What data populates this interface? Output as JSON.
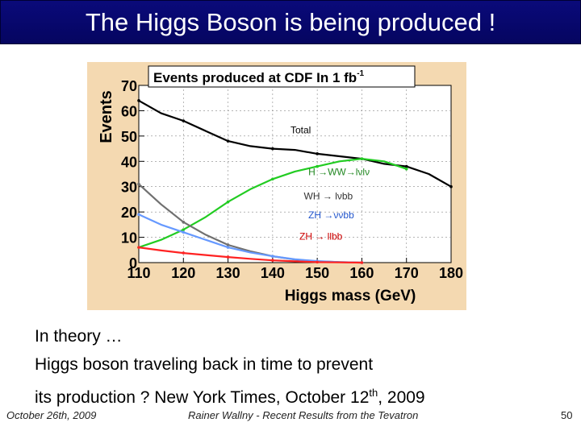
{
  "slide": {
    "title": "The Higgs Boson is being produced !",
    "body_lines": [
      "In theory …",
      "Higgs boson traveling back in time to prevent"
    ],
    "line3_pre": "its production ? New York Times, October 12",
    "line3_sup": "th",
    "line3_post": ", 2009",
    "footer": {
      "date": "October 26th, 2009",
      "author": "Rainer Wallny - Recent Results from the Tevatron",
      "page": "50"
    }
  },
  "chart_data": {
    "type": "line",
    "title": "Events produced at CDF In 1 fb",
    "title_sup": "-1",
    "xlabel": "Higgs mass (GeV)",
    "ylabel": "Events",
    "xlim": [
      110,
      180
    ],
    "ylim": [
      0,
      70
    ],
    "xticks": [
      110,
      120,
      130,
      140,
      150,
      160,
      170,
      180
    ],
    "yticks": [
      0,
      10,
      20,
      30,
      40,
      50,
      60,
      70
    ],
    "grid": true,
    "series": [
      {
        "name": "Total",
        "color": "#000000",
        "x": [
          110,
          115,
          120,
          125,
          130,
          135,
          140,
          145,
          150,
          155,
          160,
          165,
          170,
          175,
          180
        ],
        "y": [
          64,
          59,
          56,
          52,
          48,
          46,
          45,
          44.5,
          43,
          42,
          41,
          39,
          38,
          35,
          30
        ]
      },
      {
        "name": "H →WW→lνlν",
        "color": "#22cc22",
        "x": [
          110,
          115,
          120,
          125,
          130,
          135,
          140,
          145,
          150,
          155,
          160,
          165,
          170
        ],
        "y": [
          6,
          9,
          13,
          18,
          24,
          29,
          33,
          36,
          38,
          40,
          41,
          40,
          37
        ]
      },
      {
        "name": "WH → lνbb",
        "color": "#707070",
        "x": [
          110,
          115,
          120,
          125,
          130,
          135,
          140,
          145,
          150,
          155,
          160
        ],
        "y": [
          31,
          23,
          16,
          11,
          7,
          4.5,
          2.5,
          1.2,
          0.5,
          0.2,
          0
        ]
      },
      {
        "name": "ZH →ννbb",
        "color": "#6699ff",
        "x": [
          110,
          115,
          120,
          125,
          130,
          135,
          140,
          145,
          150,
          155,
          160
        ],
        "y": [
          19,
          15,
          12,
          9,
          6,
          4,
          2.5,
          1.3,
          0.6,
          0.2,
          0
        ]
      },
      {
        "name": "ZH → llbb",
        "color": "#ff2222",
        "x": [
          110,
          115,
          120,
          125,
          130,
          135,
          140,
          145,
          150,
          155,
          160
        ],
        "y": [
          6,
          4.8,
          3.8,
          3,
          2.2,
          1.5,
          0.9,
          0.5,
          0.2,
          0.1,
          0
        ]
      }
    ],
    "annotations": [
      {
        "text": "Total",
        "x": 144,
        "y": 51,
        "color": "#000000"
      },
      {
        "text": "H →WW→lνlν",
        "x": 148,
        "y": 34.5,
        "color": "#228822"
      },
      {
        "text": "WH → lνbb",
        "x": 147,
        "y": 25,
        "color": "#333333"
      },
      {
        "text": "ZH →ννbb",
        "x": 148,
        "y": 17.5,
        "color": "#2255cc"
      },
      {
        "text": "ZH → llbb",
        "x": 146,
        "y": 9,
        "color": "#cc0000"
      }
    ]
  }
}
